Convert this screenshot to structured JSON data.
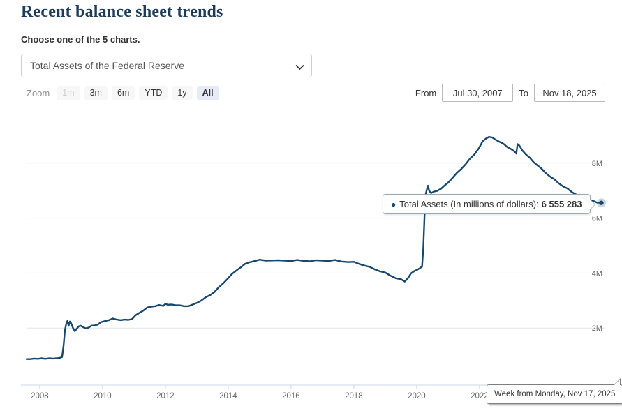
{
  "page": {
    "title": "Recent balance sheet trends",
    "subtitle": "Choose one of the 5 charts."
  },
  "chart_select": {
    "selected": "Total Assets of the Federal Reserve"
  },
  "range_selector": {
    "zoom_label": "Zoom",
    "buttons": [
      {
        "label": "1m",
        "state": "disabled"
      },
      {
        "label": "3m",
        "state": "normal"
      },
      {
        "label": "6m",
        "state": "normal"
      },
      {
        "label": "YTD",
        "state": "normal"
      },
      {
        "label": "1y",
        "state": "normal"
      },
      {
        "label": "All",
        "state": "selected"
      }
    ],
    "from_label": "From",
    "from_value": "Jul 30, 2007",
    "to_label": "To",
    "to_value": "Nov 18, 2025"
  },
  "tooltip": {
    "bullet": "●",
    "series_label": "Total Assets (In millions of dollars):",
    "value": "6 555 283"
  },
  "date_tooltip": {
    "text": "Week from Monday, Nov 17, 2025"
  },
  "colors": {
    "series": "#17466e",
    "grid": "#e6e6e6",
    "axis": "#ccd6eb",
    "axis_label": "#666666",
    "selected_button_bg": "#e6ebf5",
    "title": "#1d3b5a"
  },
  "chart_data": {
    "type": "line",
    "series_name": "Total Assets (In millions of dollars)",
    "x_unit": "year",
    "y_unit": "millions of dollars",
    "x_range": [
      2007.58,
      2025.92
    ],
    "legend": false,
    "grid": true,
    "y_axis_side": "right",
    "y_ticks": [
      {
        "label": "2M",
        "value": 2
      },
      {
        "label": "4M",
        "value": 4
      },
      {
        "label": "6M",
        "value": 6
      },
      {
        "label": "8M",
        "value": 8
      }
    ],
    "x_ticks": [
      {
        "label": "2008",
        "value": 2008
      },
      {
        "label": "2010",
        "value": 2010
      },
      {
        "label": "2012",
        "value": 2012
      },
      {
        "label": "2014",
        "value": 2014
      },
      {
        "label": "2016",
        "value": 2016
      },
      {
        "label": "2018",
        "value": 2018
      },
      {
        "label": "2020",
        "value": 2020
      },
      {
        "label": "2022",
        "value": 2022
      },
      {
        "label": "2024",
        "value": 2024
      }
    ],
    "last_point": {
      "date": "Nov 17, 2025",
      "value": 6555283
    },
    "points": [
      [
        2007.58,
        0.87
      ],
      [
        2007.7,
        0.87
      ],
      [
        2007.82,
        0.89
      ],
      [
        2007.95,
        0.88
      ],
      [
        2008.05,
        0.9
      ],
      [
        2008.18,
        0.88
      ],
      [
        2008.3,
        0.9
      ],
      [
        2008.42,
        0.89
      ],
      [
        2008.55,
        0.9
      ],
      [
        2008.65,
        0.92
      ],
      [
        2008.71,
        0.96
      ],
      [
        2008.76,
        1.35
      ],
      [
        2008.8,
        1.9
      ],
      [
        2008.84,
        2.15
      ],
      [
        2008.88,
        2.24
      ],
      [
        2008.92,
        2.08
      ],
      [
        2008.96,
        2.25
      ],
      [
        2009.0,
        2.16
      ],
      [
        2009.06,
        2.0
      ],
      [
        2009.12,
        1.9
      ],
      [
        2009.18,
        1.96
      ],
      [
        2009.24,
        2.06
      ],
      [
        2009.3,
        2.1
      ],
      [
        2009.38,
        2.02
      ],
      [
        2009.46,
        1.99
      ],
      [
        2009.55,
        2.03
      ],
      [
        2009.65,
        2.07
      ],
      [
        2009.75,
        2.1
      ],
      [
        2009.85,
        2.14
      ],
      [
        2009.95,
        2.2
      ],
      [
        2010.08,
        2.26
      ],
      [
        2010.2,
        2.3
      ],
      [
        2010.33,
        2.33
      ],
      [
        2010.45,
        2.31
      ],
      [
        2010.58,
        2.3
      ],
      [
        2010.7,
        2.29
      ],
      [
        2010.82,
        2.3
      ],
      [
        2010.94,
        2.34
      ],
      [
        2011.05,
        2.45
      ],
      [
        2011.18,
        2.56
      ],
      [
        2011.3,
        2.65
      ],
      [
        2011.42,
        2.73
      ],
      [
        2011.55,
        2.78
      ],
      [
        2011.68,
        2.81
      ],
      [
        2011.8,
        2.82
      ],
      [
        2011.93,
        2.81
      ],
      [
        2012.0,
        2.89
      ],
      [
        2012.08,
        2.83
      ],
      [
        2012.2,
        2.86
      ],
      [
        2012.33,
        2.84
      ],
      [
        2012.46,
        2.81
      ],
      [
        2012.6,
        2.8
      ],
      [
        2012.74,
        2.81
      ],
      [
        2012.88,
        2.84
      ],
      [
        2013.0,
        2.92
      ],
      [
        2013.14,
        3.01
      ],
      [
        2013.28,
        3.1
      ],
      [
        2013.42,
        3.2
      ],
      [
        2013.56,
        3.32
      ],
      [
        2013.7,
        3.47
      ],
      [
        2013.84,
        3.63
      ],
      [
        2013.98,
        3.8
      ],
      [
        2014.12,
        3.95
      ],
      [
        2014.26,
        4.1
      ],
      [
        2014.4,
        4.22
      ],
      [
        2014.54,
        4.32
      ],
      [
        2014.68,
        4.4
      ],
      [
        2014.85,
        4.45
      ],
      [
        2015.0,
        4.47
      ],
      [
        2015.2,
        4.46
      ],
      [
        2015.4,
        4.47
      ],
      [
        2015.6,
        4.45
      ],
      [
        2015.8,
        4.46
      ],
      [
        2016.0,
        4.45
      ],
      [
        2016.2,
        4.46
      ],
      [
        2016.4,
        4.45
      ],
      [
        2016.6,
        4.44
      ],
      [
        2016.8,
        4.45
      ],
      [
        2017.0,
        4.46
      ],
      [
        2017.2,
        4.45
      ],
      [
        2017.4,
        4.46
      ],
      [
        2017.6,
        4.43
      ],
      [
        2017.8,
        4.41
      ],
      [
        2018.0,
        4.39
      ],
      [
        2018.17,
        4.34
      ],
      [
        2018.34,
        4.28
      ],
      [
        2018.5,
        4.21
      ],
      [
        2018.67,
        4.14
      ],
      [
        2018.84,
        4.07
      ],
      [
        2019.0,
        4.0
      ],
      [
        2019.17,
        3.91
      ],
      [
        2019.34,
        3.82
      ],
      [
        2019.5,
        3.76
      ],
      [
        2019.62,
        3.7
      ],
      [
        2019.72,
        3.82
      ],
      [
        2019.82,
        3.97
      ],
      [
        2019.92,
        4.08
      ],
      [
        2020.02,
        4.13
      ],
      [
        2020.1,
        4.16
      ],
      [
        2020.17,
        4.24
      ],
      [
        2020.21,
        4.9
      ],
      [
        2020.25,
        6.1
      ],
      [
        2020.29,
        6.9
      ],
      [
        2020.33,
        7.08
      ],
      [
        2020.36,
        7.16
      ],
      [
        2020.4,
        7.0
      ],
      [
        2020.46,
        6.92
      ],
      [
        2020.55,
        6.95
      ],
      [
        2020.65,
        7.0
      ],
      [
        2020.78,
        7.08
      ],
      [
        2020.9,
        7.18
      ],
      [
        2021.0,
        7.3
      ],
      [
        2021.14,
        7.47
      ],
      [
        2021.28,
        7.63
      ],
      [
        2021.42,
        7.8
      ],
      [
        2021.56,
        7.97
      ],
      [
        2021.7,
        8.15
      ],
      [
        2021.84,
        8.33
      ],
      [
        2021.98,
        8.55
      ],
      [
        2022.1,
        8.78
      ],
      [
        2022.2,
        8.9
      ],
      [
        2022.3,
        8.96
      ],
      [
        2022.4,
        8.92
      ],
      [
        2022.52,
        8.86
      ],
      [
        2022.64,
        8.78
      ],
      [
        2022.76,
        8.69
      ],
      [
        2022.88,
        8.6
      ],
      [
        2023.0,
        8.52
      ],
      [
        2023.1,
        8.42
      ],
      [
        2023.17,
        8.36
      ],
      [
        2023.21,
        8.7
      ],
      [
        2023.27,
        8.62
      ],
      [
        2023.36,
        8.48
      ],
      [
        2023.48,
        8.32
      ],
      [
        2023.6,
        8.18
      ],
      [
        2023.72,
        8.05
      ],
      [
        2023.84,
        7.93
      ],
      [
        2023.96,
        7.8
      ],
      [
        2024.1,
        7.66
      ],
      [
        2024.24,
        7.52
      ],
      [
        2024.38,
        7.4
      ],
      [
        2024.52,
        7.28
      ],
      [
        2024.66,
        7.16
      ],
      [
        2024.8,
        7.06
      ],
      [
        2024.94,
        6.96
      ],
      [
        2025.08,
        6.86
      ],
      [
        2025.22,
        6.77
      ],
      [
        2025.36,
        6.7
      ],
      [
        2025.5,
        6.64
      ],
      [
        2025.62,
        6.61
      ],
      [
        2025.74,
        6.58
      ],
      [
        2025.83,
        6.56
      ],
      [
        2025.88,
        6.555283
      ]
    ]
  }
}
